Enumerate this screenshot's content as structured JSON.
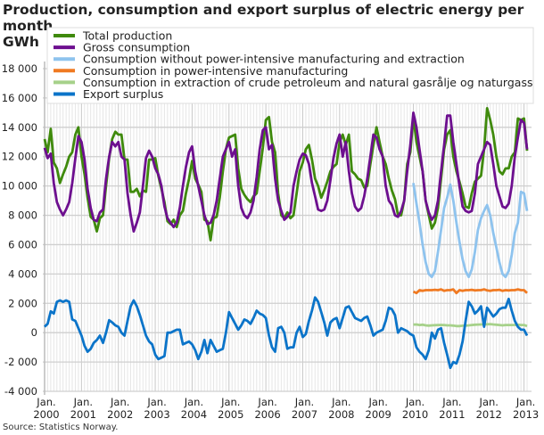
{
  "chart_data": {
    "type": "line",
    "title": "Production, consumption and export surplus of electric energy per month.",
    "unit_label": "GWh",
    "source": "Source: Statistics Norway.",
    "ylim": [
      -4000,
      18000
    ],
    "yticks": [
      "-4 000",
      "-2 000",
      "0",
      "2 000",
      "4 000",
      "6 000",
      "8 000",
      "10 000",
      "12 000",
      "14 000",
      "16 000",
      "18 000"
    ],
    "ytick_values": [
      -4000,
      -2000,
      0,
      2000,
      4000,
      6000,
      8000,
      10000,
      12000,
      14000,
      16000,
      18000
    ],
    "x_start": "2000-01",
    "x_frequency": "monthly",
    "xticks": [
      {
        "line1": "Jan.",
        "line2": "2000"
      },
      {
        "line1": "Jan.",
        "line2": "2001"
      },
      {
        "line1": "Jan.",
        "line2": "2002"
      },
      {
        "line1": "Jan.",
        "line2": "2003"
      },
      {
        "line1": "Jan.",
        "line2": "2004"
      },
      {
        "line1": "Jan.",
        "line2": "2005"
      },
      {
        "line1": "Jan.",
        "line2": "2006"
      },
      {
        "line1": "Jan.",
        "line2": "2007"
      },
      {
        "line1": "Jan.",
        "line2": "2008"
      },
      {
        "line1": "Jan.",
        "line2": "2009"
      },
      {
        "line1": "Jan.",
        "line2": "2010"
      },
      {
        "line1": "Jan.",
        "line2": "2011"
      },
      {
        "line1": "Jan.",
        "line2": "2012"
      },
      {
        "line1": "Jan.",
        "line2": "2013"
      }
    ],
    "grid": true,
    "legend_position": "top",
    "series": [
      {
        "name": "Total production",
        "color": "#3f8a0c",
        "start": "2000-01",
        "values": [
          13200,
          12300,
          13900,
          11600,
          11200,
          10200,
          10800,
          11300,
          12000,
          12300,
          13500,
          14000,
          12000,
          10800,
          9200,
          7900,
          7700,
          6900,
          7800,
          8000,
          10000,
          11900,
          13200,
          13700,
          13500,
          13500,
          11800,
          11800,
          9600,
          9600,
          9800,
          9300,
          9700,
          9600,
          11800,
          11800,
          11900,
          10700,
          9800,
          8900,
          7600,
          7400,
          7700,
          7200,
          8000,
          8300,
          9500,
          10500,
          11700,
          10500,
          10100,
          9600,
          7700,
          7600,
          6300,
          7800,
          7900,
          9200,
          11000,
          12500,
          13300,
          13400,
          13500,
          11200,
          9800,
          9400,
          9100,
          8900,
          9300,
          9500,
          11000,
          12600,
          14500,
          14700,
          13000,
          12300,
          9500,
          8000,
          7800,
          8200,
          7800,
          8000,
          9500,
          11000,
          11600,
          12500,
          12800,
          11800,
          10500,
          10000,
          9200,
          9700,
          10300,
          11000,
          11300,
          11500,
          13000,
          13500,
          12800,
          13500,
          11000,
          10800,
          10500,
          10400,
          9900,
          10000,
          11500,
          12800,
          14000,
          13000,
          12000,
          11500,
          10500,
          9700,
          9100,
          8000,
          8000,
          9000,
          11500,
          12300,
          14700,
          13000,
          12000,
          11000,
          9000,
          8000,
          7100,
          7500,
          8500,
          10500,
          12500,
          13500,
          13800,
          12000,
          11000,
          10300,
          9500,
          8600,
          8500,
          9500,
          10300,
          10500,
          10700,
          12500,
          15300,
          14500,
          13500,
          12000,
          11000,
          10800,
          11200,
          11200,
          12000,
          12300,
          14600,
          14500,
          14600,
          12400
        ]
      },
      {
        "name": "Gross consumption",
        "color": "#6d0f8f",
        "start": "2000-01",
        "values": [
          12600,
          11900,
          12200,
          10200,
          8900,
          8400,
          8000,
          8400,
          8900,
          10200,
          11900,
          13400,
          13000,
          11800,
          9800,
          8500,
          7700,
          7600,
          8200,
          8400,
          10500,
          12000,
          13000,
          12700,
          13000,
          12000,
          11800,
          9500,
          8000,
          6900,
          7500,
          8200,
          10000,
          11900,
          12400,
          12000,
          11200,
          10800,
          10000,
          8600,
          7800,
          7500,
          7200,
          7500,
          8500,
          10000,
          11300,
          12300,
          12700,
          11000,
          10000,
          9000,
          8000,
          7400,
          7500,
          8000,
          9000,
          10500,
          12000,
          12500,
          13000,
          12000,
          12500,
          10000,
          8500,
          8000,
          7800,
          8200,
          9000,
          10600,
          12500,
          13800,
          14000,
          12500,
          12800,
          10500,
          9000,
          8300,
          7700,
          7900,
          8200,
          10000,
          11000,
          11800,
          12200,
          12100,
          11500,
          10200,
          9300,
          8400,
          8300,
          8400,
          9000,
          10400,
          11900,
          12900,
          13500,
          12000,
          13000,
          11000,
          9500,
          8600,
          8300,
          8500,
          9300,
          10500,
          12000,
          13500,
          13300,
          12500,
          12000,
          10000,
          9000,
          8700,
          8000,
          7900,
          8300,
          9000,
          11000,
          12800,
          15000,
          14000,
          12500,
          11000,
          9000,
          8200,
          7700,
          8000,
          9000,
          11000,
          12800,
          14800,
          14800,
          13000,
          11500,
          10000,
          8600,
          8300,
          8200,
          8300,
          9500,
          11500,
          12000,
          12500,
          13000,
          12800,
          11500,
          10000,
          9300,
          8600,
          8500,
          8800,
          10000,
          12000,
          13300,
          14500,
          14300,
          12500
        ]
      },
      {
        "name": "Consumption without power-intensive manufacturing and extraction",
        "color": "#8ec3ee",
        "start": "2010-01",
        "values": [
          10200,
          8800,
          7500,
          6000,
          4800,
          4000,
          3800,
          4200,
          5500,
          7000,
          8500,
          9200,
          10100,
          9000,
          7500,
          6200,
          5000,
          4200,
          3800,
          4300,
          5500,
          7000,
          7800,
          8300,
          8700,
          8000,
          6800,
          5800,
          4800,
          4000,
          3800,
          4200,
          5300,
          6800,
          7500,
          9600,
          9500,
          8300
        ]
      },
      {
        "name": "Consumption in power-intensive manufacturing",
        "color": "#f07a22",
        "start": "2010-01",
        "values": [
          2800,
          2700,
          2900,
          2850,
          2900,
          2900,
          2900,
          2920,
          2900,
          2950,
          2850,
          2900,
          2900,
          2950,
          2700,
          2900,
          2850,
          2900,
          2900,
          2920,
          2880,
          2900,
          2900,
          2950,
          2880,
          2850,
          2900,
          2900,
          2920,
          2850,
          2900,
          2880,
          2900,
          2900,
          2950,
          2900,
          2900,
          2700
        ]
      },
      {
        "name": "Consumption in extraction of crude petroleum and natural gasrålje og naturgass",
        "color": "#a6d18a",
        "start": "2010-01",
        "values": [
          550,
          560,
          520,
          540,
          500,
          480,
          500,
          510,
          520,
          530,
          520,
          500,
          500,
          480,
          450,
          450,
          470,
          480,
          500,
          520,
          540,
          550,
          560,
          560,
          570,
          580,
          560,
          540,
          520,
          500,
          520,
          520,
          520,
          530,
          540,
          520,
          520,
          450
        ]
      },
      {
        "name": "Export surplus",
        "color": "#0b74c9",
        "start": "2000-01",
        "values": [
          400,
          600,
          1450,
          1300,
          2100,
          2200,
          2100,
          2200,
          2100,
          900,
          800,
          300,
          -200,
          -900,
          -1300,
          -1100,
          -700,
          -500,
          -200,
          -700,
          0,
          850,
          700,
          500,
          400,
          0,
          -200,
          800,
          1800,
          2200,
          1800,
          1200,
          500,
          -200,
          -600,
          -800,
          -1500,
          -1800,
          -1700,
          -1600,
          0,
          0,
          100,
          200,
          200,
          -800,
          -700,
          -600,
          -800,
          -1200,
          -1800,
          -1300,
          -500,
          -1400,
          -500,
          -900,
          -1300,
          -1200,
          -1100,
          0,
          1400,
          1000,
          600,
          200,
          500,
          900,
          800,
          600,
          1000,
          1500,
          1300,
          1200,
          1000,
          -200,
          -1000,
          -1300,
          300,
          400,
          0,
          -1100,
          -1000,
          -1000,
          0,
          400,
          -300,
          -100,
          800,
          1500,
          2400,
          2100,
          1400,
          700,
          -200,
          700,
          900,
          1000,
          300,
          1000,
          1700,
          1800,
          1400,
          1000,
          900,
          800,
          1000,
          1100,
          500,
          -200,
          0,
          100,
          200,
          800,
          1700,
          1600,
          1200,
          0,
          300,
          200,
          100,
          -100,
          -200,
          -1000,
          -1300,
          -1500,
          -1800,
          -1200,
          0,
          -400,
          200,
          300,
          -700,
          -1500,
          -2400,
          -2000,
          -2100,
          -1500,
          -600,
          800,
          2100,
          1800,
          1300,
          1500,
          1800,
          400,
          1700,
          1400,
          1100,
          1300,
          1600,
          1700,
          1700,
          2300,
          1500,
          800,
          400,
          200,
          200,
          -200
        ]
      }
    ]
  }
}
